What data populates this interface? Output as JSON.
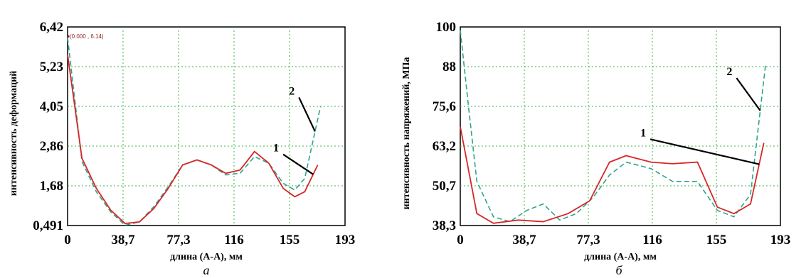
{
  "chart_data": [
    {
      "type": "line",
      "caption": "а",
      "xlabel": "длина (А-А), мм",
      "ylabel": "интенсивность деформаций",
      "xlim": [
        0,
        193
      ],
      "ylim": [
        0.491,
        6.42
      ],
      "x_ticks": [
        "0",
        "38,7",
        "77,3",
        "116",
        "155",
        "193"
      ],
      "y_ticks": [
        "0,491",
        "1,68",
        "2,86",
        "4,05",
        "5,23",
        "6,42"
      ],
      "grid": true,
      "annotation": "(0.000 , 6.14)",
      "series": [
        {
          "name": "1",
          "color": "#d62728",
          "style": "solid",
          "points": [
            [
              0,
              5.6
            ],
            [
              10,
              2.5
            ],
            [
              20,
              1.6
            ],
            [
              30,
              0.95
            ],
            [
              40,
              0.55
            ],
            [
              50,
              0.6
            ],
            [
              60,
              1.0
            ],
            [
              70,
              1.6
            ],
            [
              80,
              2.3
            ],
            [
              90,
              2.45
            ],
            [
              100,
              2.3
            ],
            [
              110,
              2.05
            ],
            [
              120,
              2.15
            ],
            [
              130,
              2.7
            ],
            [
              140,
              2.35
            ],
            [
              150,
              1.6
            ],
            [
              158,
              1.35
            ],
            [
              165,
              1.5
            ],
            [
              174,
              2.3
            ]
          ]
        },
        {
          "name": "2",
          "color": "#2ca58d",
          "style": "dashed",
          "points": [
            [
              0,
              6.1
            ],
            [
              10,
              2.4
            ],
            [
              20,
              1.5
            ],
            [
              30,
              0.9
            ],
            [
              40,
              0.5
            ],
            [
              50,
              0.6
            ],
            [
              60,
              1.05
            ],
            [
              70,
              1.65
            ],
            [
              80,
              2.3
            ],
            [
              90,
              2.45
            ],
            [
              100,
              2.3
            ],
            [
              110,
              2.0
            ],
            [
              120,
              2.05
            ],
            [
              130,
              2.55
            ],
            [
              140,
              2.35
            ],
            [
              150,
              1.75
            ],
            [
              158,
              1.55
            ],
            [
              165,
              1.9
            ],
            [
              176,
              4.05
            ]
          ]
        }
      ],
      "labels": [
        {
          "text": "2",
          "x": 158,
          "y": 4.4
        },
        {
          "text": "1",
          "x": 147,
          "y": 2.7
        }
      ]
    },
    {
      "type": "line",
      "caption": "б",
      "xlabel": "длина (А-А), мм",
      "ylabel": "интенсивность напряжений, МПа",
      "xlim": [
        0,
        193
      ],
      "ylim": [
        38.3,
        100
      ],
      "x_ticks": [
        "0",
        "38,7",
        "77,3",
        "116",
        "155",
        "193"
      ],
      "y_ticks": [
        "38,3",
        "50,7",
        "63,2",
        "75,6",
        "88",
        "100"
      ],
      "grid": true,
      "series": [
        {
          "name": "1",
          "color": "#d62728",
          "style": "solid",
          "points": [
            [
              0,
              69
            ],
            [
              10,
              42
            ],
            [
              20,
              39
            ],
            [
              35,
              40
            ],
            [
              50,
              39.5
            ],
            [
              65,
              42
            ],
            [
              78,
              46
            ],
            [
              90,
              58
            ],
            [
              100,
              60
            ],
            [
              115,
              58
            ],
            [
              128,
              57.5
            ],
            [
              143,
              58
            ],
            [
              155,
              44
            ],
            [
              165,
              42
            ],
            [
              175,
              45
            ],
            [
              183,
              64
            ]
          ]
        },
        {
          "name": "2",
          "color": "#2ca58d",
          "style": "dashed",
          "points": [
            [
              0,
              99
            ],
            [
              5,
              75
            ],
            [
              10,
              52
            ],
            [
              20,
              41
            ],
            [
              30,
              39.5
            ],
            [
              40,
              43
            ],
            [
              50,
              45
            ],
            [
              60,
              40
            ],
            [
              70,
              42
            ],
            [
              80,
              47
            ],
            [
              90,
              54
            ],
            [
              100,
              58
            ],
            [
              115,
              56
            ],
            [
              128,
              52
            ],
            [
              143,
              52
            ],
            [
              155,
              43
            ],
            [
              165,
              41
            ],
            [
              175,
              48
            ],
            [
              184,
              88
            ]
          ]
        }
      ],
      "labels": [
        {
          "text": "1",
          "x": 112,
          "y": 66
        },
        {
          "text": "2",
          "x": 164,
          "y": 85
        }
      ]
    }
  ]
}
